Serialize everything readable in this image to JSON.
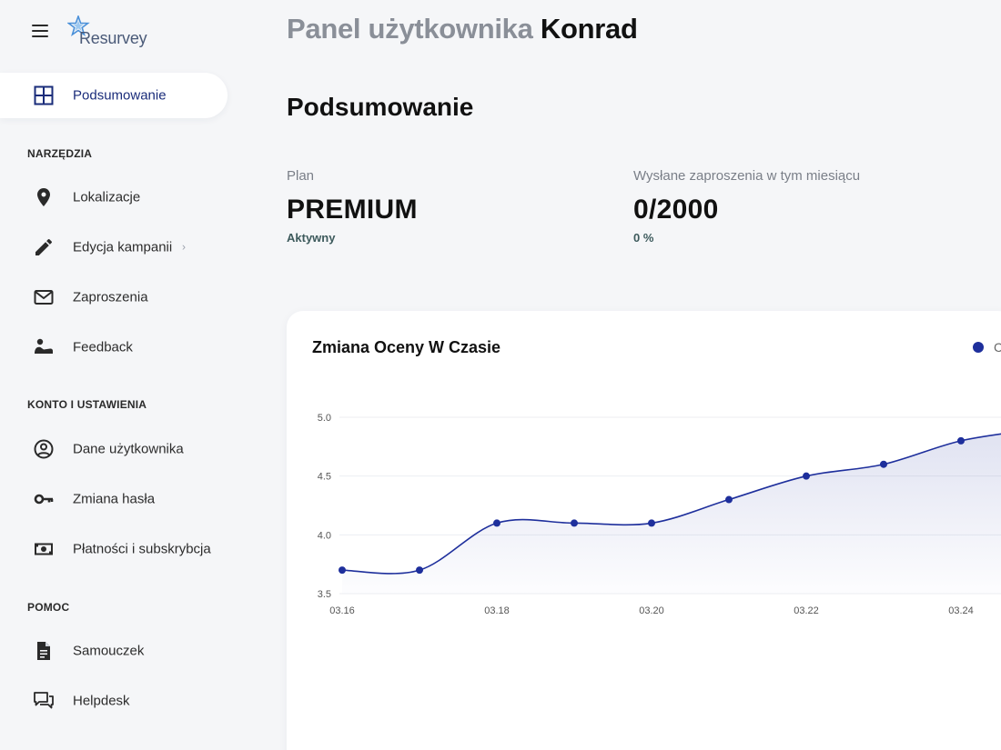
{
  "app": {
    "brand": "Resurvey",
    "colors": {
      "accent": "#1e2f9c",
      "background": "#f5f6f8",
      "card": "#ffffff"
    }
  },
  "sidebar": {
    "active": {
      "label": "Podsumowanie",
      "icon": "dashboard-grid-icon"
    },
    "sections": [
      {
        "title": "NARZĘDZIA",
        "items": [
          {
            "label": "Lokalizacje",
            "icon": "location-pin-icon"
          },
          {
            "label": "Edycja kampanii",
            "icon": "pencil-icon",
            "has_submenu": true
          },
          {
            "label": "Zaproszenia",
            "icon": "mail-icon"
          },
          {
            "label": "Feedback",
            "icon": "feedback-person-icon"
          }
        ]
      },
      {
        "title": "KONTO I USTAWIENIA",
        "items": [
          {
            "label": "Dane użytkownika",
            "icon": "account-circle-icon"
          },
          {
            "label": "Zmiana hasła",
            "icon": "key-icon"
          },
          {
            "label": "Płatności i subskrybcja",
            "icon": "payments-icon"
          }
        ]
      },
      {
        "title": "POMOC",
        "items": [
          {
            "label": "Samouczek",
            "icon": "document-icon"
          },
          {
            "label": "Helpdesk",
            "icon": "chat-bubbles-icon"
          }
        ]
      }
    ]
  },
  "header": {
    "title_prefix": "Panel użytkownika",
    "user_name": "Konrad"
  },
  "summary": {
    "heading": "Podsumowanie",
    "plan": {
      "label": "Plan",
      "value": "PREMIUM",
      "status": "Aktywny"
    },
    "invites": {
      "label": "Wysłane zaproszenia w tym miesiącu",
      "value": "0/2000",
      "percent": "0 %"
    }
  },
  "chart": {
    "title": "Zmiana Oceny W Czasie",
    "legend_label": "C"
  },
  "chart_data": {
    "type": "area",
    "title": "Zmiana Oceny W Czasie",
    "x": [
      "03.16",
      "03.17",
      "03.18",
      "03.19",
      "03.20",
      "03.21",
      "03.22",
      "03.23",
      "03.24",
      "03.25"
    ],
    "x_tick_labels": [
      "03.16",
      "03.18",
      "03.20",
      "03.22",
      "03.24"
    ],
    "series": [
      {
        "name": "C",
        "values": [
          3.7,
          3.7,
          4.1,
          4.1,
          4.1,
          4.3,
          4.5,
          4.6,
          4.8,
          4.9
        ]
      }
    ],
    "y_ticks": [
      3.5,
      4.0,
      4.5,
      5.0
    ],
    "ylim": [
      3.5,
      5.0
    ],
    "grid": true,
    "legend_position": "top-right",
    "color": "#1e2f9c"
  }
}
